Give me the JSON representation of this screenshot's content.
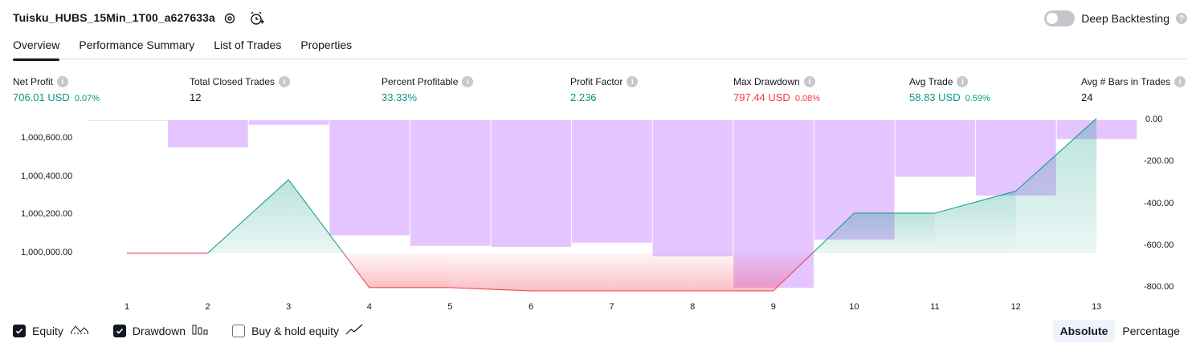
{
  "header": {
    "title": "Tuisku_HUBS_15Min_1T00_a627633a",
    "settings_icon": "gear-icon",
    "alert_icon": "alarm-clock-plus-icon"
  },
  "deep_backtesting": {
    "label": "Deep Backtesting",
    "enabled": false
  },
  "tabs": [
    {
      "label": "Overview",
      "active": true
    },
    {
      "label": "Performance Summary",
      "active": false
    },
    {
      "label": "List of Trades",
      "active": false
    },
    {
      "label": "Properties",
      "active": false
    }
  ],
  "stats": [
    {
      "label": "Net Profit",
      "value": "706.01 USD",
      "pct": "0.07%",
      "color": "#089981"
    },
    {
      "label": "Total Closed Trades",
      "value": "12",
      "pct": "",
      "color": "#131722"
    },
    {
      "label": "Percent Profitable",
      "value": "33.33%",
      "pct": "",
      "color": "#089981"
    },
    {
      "label": "Profit Factor",
      "value": "2.236",
      "pct": "",
      "color": "#089981"
    },
    {
      "label": "Max Drawdown",
      "value": "797.44 USD",
      "pct": "0.08%",
      "color": "#f23645"
    },
    {
      "label": "Avg Trade",
      "value": "58.83 USD",
      "pct": "0.59%",
      "color": "#089981"
    },
    {
      "label": "Avg # Bars in Trades",
      "value": "24",
      "pct": "",
      "color": "#131722"
    }
  ],
  "chart_data": {
    "type": "line",
    "x": [
      1,
      2,
      3,
      4,
      5,
      6,
      7,
      8,
      9,
      10,
      11,
      12,
      13
    ],
    "x_tick_labels": [
      "1",
      "2",
      "3",
      "4",
      "5",
      "6",
      "7",
      "8",
      "9",
      "10",
      "11",
      "12",
      "13"
    ],
    "left_axis": {
      "tick_labels": [
        "1,000,600.00",
        "1,000,400.00",
        "1,000,200.00",
        "1,000,000.00"
      ],
      "ticks": [
        1000600,
        1000400,
        1000200,
        1000000
      ],
      "range": [
        999810,
        1000700
      ]
    },
    "right_axis": {
      "tick_labels": [
        "0.00",
        "-200.00",
        "-400.00",
        "-600.00",
        "-800.00"
      ],
      "ticks": [
        0,
        -200,
        -400,
        -600,
        -800
      ],
      "range": [
        -840,
        0
      ]
    },
    "series": [
      {
        "name": "Equity",
        "axis": "left",
        "color": "#089981",
        "values": [
          1000000,
          1000000,
          1000385,
          999820,
          999820,
          999803,
          999803,
          999803,
          999803,
          1000210,
          1000210,
          1000325,
          1000706
        ]
      },
      {
        "name": "Drawdown",
        "axis": "right",
        "type": "bar",
        "color": "#e1bfff",
        "values": [
          -3,
          -130,
          -22,
          -550,
          -600,
          -605,
          -585,
          -650,
          -800,
          -570,
          -270,
          -360,
          -90
        ]
      }
    ]
  },
  "legend": {
    "equity": {
      "label": "Equity",
      "checked": true
    },
    "drawdown": {
      "label": "Drawdown",
      "checked": true
    },
    "buy_hold": {
      "label": "Buy & hold equity",
      "checked": false
    }
  },
  "scale_toggle": {
    "absolute": "Absolute",
    "percentage": "Percentage",
    "selected": "absolute"
  }
}
